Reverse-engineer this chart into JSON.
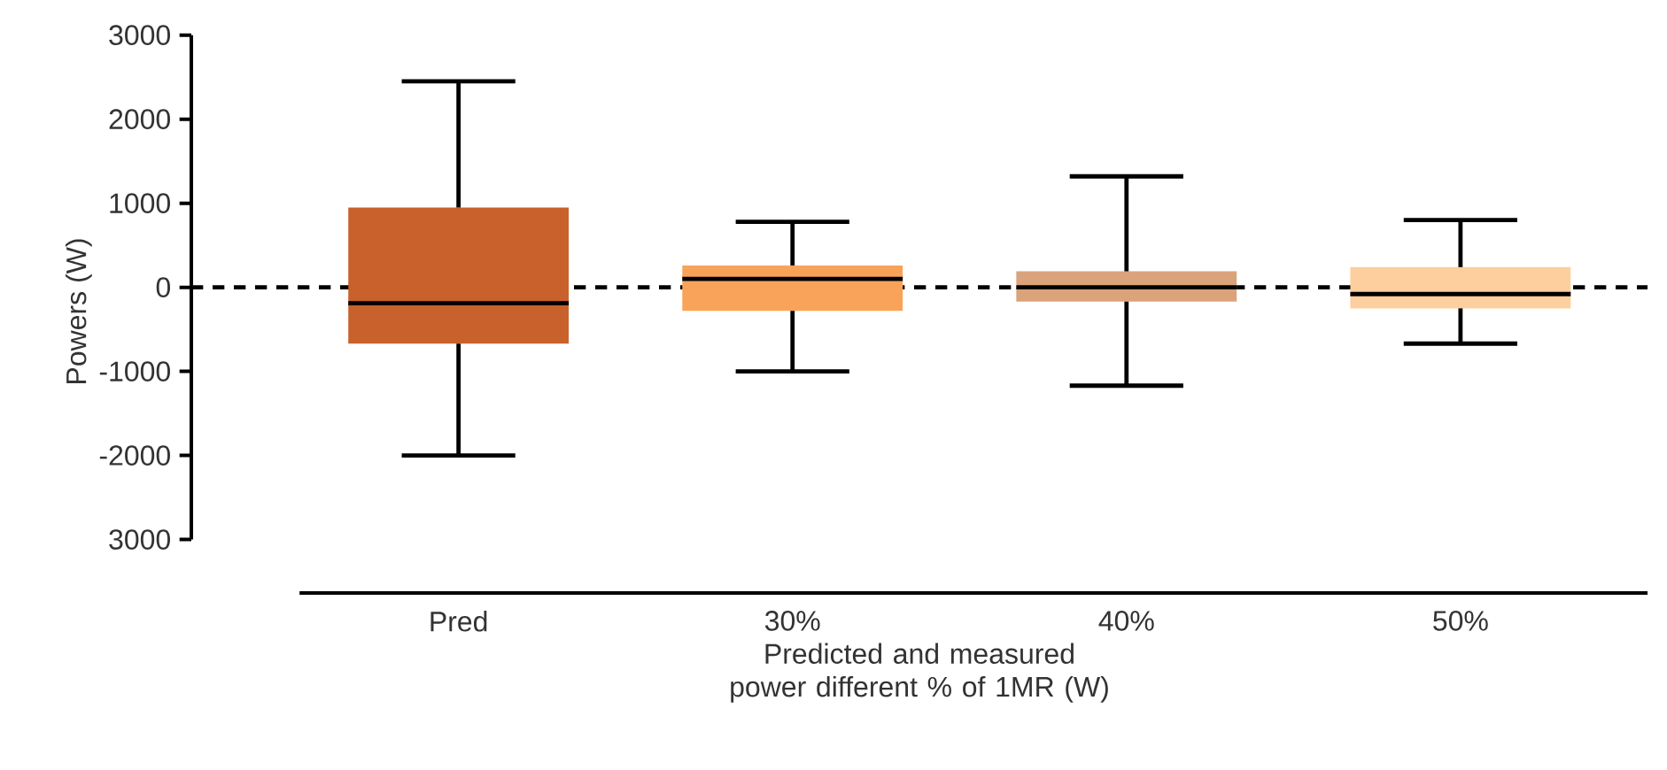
{
  "chart_data": {
    "type": "box",
    "ylabel": "Powers (W)",
    "xlabel": "Predicted and measured power different % of 1MR (W)",
    "categories": [
      "Pred",
      "30%",
      "40%",
      "50%"
    ],
    "colors": [
      "#c8612b",
      "#f9a35a",
      "#dba37c",
      "#fdcf9e"
    ],
    "boxes": [
      {
        "low": -2000,
        "q1": -670,
        "median": -190,
        "q3": 950,
        "high": 2450
      },
      {
        "low": -1000,
        "q1": -280,
        "median": 100,
        "q3": 260,
        "high": 780
      },
      {
        "low": -1170,
        "q1": -170,
        "median": 0,
        "q3": 190,
        "high": 1320
      },
      {
        "low": -670,
        "q1": -250,
        "median": -80,
        "q3": 240,
        "high": 800
      }
    ],
    "ylim": [
      -3000,
      3000
    ],
    "yticks": [
      {
        "value": -3000,
        "label": "3000"
      },
      -2000,
      -1000,
      0,
      1000,
      2000,
      3000
    ],
    "ref_lines": [
      {
        "axis": "y",
        "value": 0,
        "line_style": "dashed"
      }
    ]
  }
}
